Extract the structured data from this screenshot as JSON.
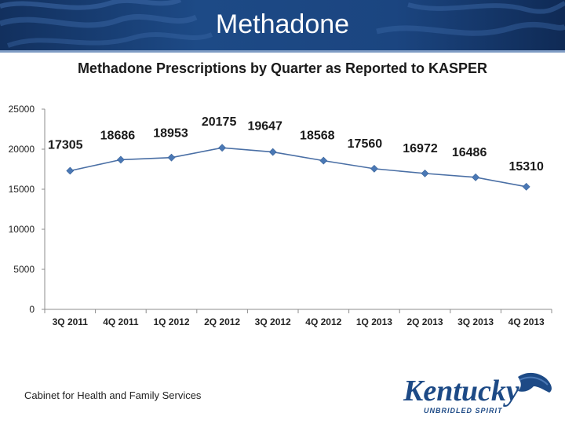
{
  "slide": {
    "title": "Methadone",
    "footer": "Cabinet for Health and Family Services"
  },
  "logo": {
    "name": "kentucky-logo",
    "wordmark": "Kentucky",
    "tagline": "UNBRIDLED SPIRIT"
  },
  "colors": {
    "header": "#1d4a86",
    "line": "#4a6fa5",
    "marker": "#4a78b5"
  },
  "chart_data": {
    "type": "line",
    "title": "Methadone Prescriptions by Quarter as Reported to KASPER",
    "categories": [
      "3Q 2011",
      "4Q 2011",
      "1Q 2012",
      "2Q 2012",
      "3Q 2012",
      "4Q 2012",
      "1Q 2013",
      "2Q 2013",
      "3Q 2013",
      "4Q 2013"
    ],
    "values": [
      17305,
      18686,
      18953,
      20175,
      19647,
      18568,
      17560,
      16972,
      16486,
      15310
    ],
    "data_labels": [
      "17305",
      "18686",
      "18953",
      "20175",
      "19647",
      "18568",
      "17560",
      "16972",
      "16486",
      "15310"
    ],
    "y_ticks": [
      "0",
      "5000",
      "10000",
      "15000",
      "20000",
      "25000"
    ],
    "ylim": [
      0,
      25000
    ],
    "xlabel": "",
    "ylabel": "",
    "grid": false,
    "legend": "none"
  }
}
